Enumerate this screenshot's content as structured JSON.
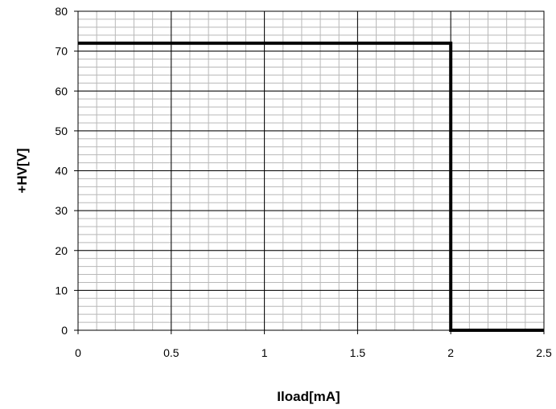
{
  "chart_data": {
    "type": "line",
    "title": "",
    "xlabel": "Iload[mA]",
    "ylabel": "+HV[V]",
    "xlim": [
      0,
      2.5
    ],
    "ylim": [
      0,
      80
    ],
    "x_ticks": [
      0,
      0.5,
      1,
      1.5,
      2,
      2.5
    ],
    "x_tick_labels": [
      "0",
      "0.5",
      "1",
      "1.5",
      "2",
      "2.5"
    ],
    "y_ticks": [
      0,
      10,
      20,
      30,
      40,
      50,
      60,
      70,
      80
    ],
    "y_tick_labels": [
      "0",
      "10",
      "20",
      "30",
      "40",
      "50",
      "60",
      "70",
      "80"
    ],
    "x_minor_step": 0.1,
    "y_minor_step": 2,
    "grid": true,
    "legend": "none",
    "series": [
      {
        "x": [
          0,
          2,
          2,
          2.5
        ],
        "y": [
          72,
          72,
          0,
          0
        ],
        "color": "#000000"
      }
    ]
  }
}
